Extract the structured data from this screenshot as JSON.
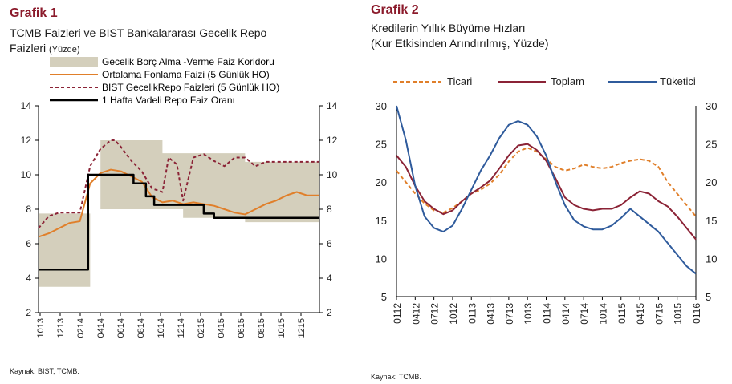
{
  "chart1": {
    "heading": "Grafik 1",
    "subtitle_line1": "TCMB Faizleri ve BIST Bankalararası Gecelik Repo",
    "subtitle_line2": "Faizleri",
    "unit": "(Yüzde)",
    "source": "Kaynak: BIST, TCMB."
  },
  "chart2": {
    "heading": "Grafik 2",
    "subtitle_line1": "Kredilerin Yıllık Büyüme Hızları",
    "subtitle_line2": "(Kur Etkisinden Arındırılmış, Yüzde)",
    "source": "Kaynak: TCMB."
  },
  "colors": {
    "title": "#8b1a2b",
    "corridor": "#d4cfbc",
    "orange": "#e07f2a",
    "maroon": "#8b2336",
    "black": "#000000",
    "blue": "#2f5b9c"
  },
  "chart_data": [
    {
      "type": "line",
      "ylim": [
        2,
        14
      ],
      "yticks": [
        2,
        4,
        6,
        8,
        10,
        12,
        14
      ],
      "xticks": [
        "1013",
        "1213",
        "0214",
        "0414",
        "0614",
        "0814",
        "1014",
        "1214",
        "0215",
        "0415",
        "0615",
        "0815",
        "1015",
        "1215"
      ],
      "grid": false,
      "legend_position": "top",
      "series": [
        {
          "name": "Gecelik Borç Alma -Verme Faiz Koridoru",
          "style": "band",
          "x": [
            0,
            2.5,
            2.5,
            3.0,
            3.0,
            4.5,
            4.5,
            6.0,
            6.0,
            7.0,
            7.0,
            8.0,
            8.0,
            10.0,
            10.0,
            10.5,
            10.5,
            13.6
          ],
          "lower": [
            3.5,
            3.5,
            7.75,
            7.75,
            8,
            8,
            8,
            8,
            8,
            8,
            7.5,
            7.5,
            7.5,
            7.5,
            7.25,
            7.25,
            7.25,
            7.25
          ],
          "upper": [
            7.75,
            7.75,
            7.75,
            7.75,
            12,
            12,
            12,
            12,
            11.25,
            11.25,
            11.25,
            11.25,
            11.25,
            11.25,
            10.75,
            10.75,
            10.75,
            10.75
          ]
        },
        {
          "name": "Ortalama Fonlama Faizi (5 Günlük HO)",
          "x": [
            0,
            0.5,
            1.0,
            1.5,
            2.0,
            2.5,
            3.0,
            3.5,
            4.0,
            4.5,
            5.0,
            5.5,
            6.0,
            6.5,
            7.0,
            7.5,
            8.0,
            8.5,
            9.0,
            9.5,
            10.0,
            10.5,
            11.0,
            11.5,
            12.0,
            12.5,
            13.0,
            13.6
          ],
          "values": [
            6.4,
            6.6,
            6.9,
            7.2,
            7.3,
            9.5,
            10.1,
            10.3,
            10.2,
            9.9,
            9.6,
            8.7,
            8.4,
            8.5,
            8.3,
            8.4,
            8.3,
            8.2,
            8.0,
            7.8,
            7.7,
            8.0,
            8.3,
            8.5,
            8.8,
            9.0,
            8.8,
            8.8
          ]
        },
        {
          "name": "BIST GecelikRepo Faizleri (5 Günlük HO)",
          "x": [
            0,
            0.5,
            1.0,
            1.5,
            2.0,
            2.5,
            3.0,
            3.5,
            3.7,
            4.0,
            4.5,
            5.0,
            5.5,
            6.0,
            6.3,
            6.7,
            7.0,
            7.5,
            8.0,
            8.5,
            9.0,
            9.5,
            10.0,
            10.5,
            11.0,
            12.0,
            13.0,
            13.6
          ],
          "values": [
            6.9,
            7.6,
            7.8,
            7.8,
            7.8,
            10.5,
            11.5,
            12.0,
            12.0,
            11.6,
            10.8,
            10.2,
            9.2,
            9.0,
            11.0,
            10.6,
            8.5,
            11.0,
            11.2,
            10.8,
            10.5,
            11.0,
            11.0,
            10.5,
            10.75,
            10.75,
            10.75,
            10.75
          ]
        },
        {
          "name": "1 Hafta Vadeli Repo Faiz Oranı",
          "style": "step",
          "x": [
            0,
            2.4,
            2.4,
            4.6,
            4.6,
            5.2,
            5.2,
            5.6,
            5.6,
            8.0,
            8.0,
            8.5,
            8.5,
            13.6
          ],
          "values": [
            4.5,
            4.5,
            10.0,
            10.0,
            9.5,
            9.5,
            8.75,
            8.75,
            8.25,
            8.25,
            7.75,
            7.75,
            7.5,
            7.5
          ]
        }
      ]
    },
    {
      "type": "line",
      "ylim": [
        5,
        30
      ],
      "yticks": [
        5,
        10,
        15,
        20,
        25,
        30
      ],
      "xticks": [
        "0112",
        "0412",
        "0712",
        "1012",
        "0113",
        "0413",
        "0713",
        "1013",
        "0114",
        "0414",
        "0714",
        "1014",
        "0115",
        "0415",
        "0715",
        "1015",
        "0116"
      ],
      "grid": false,
      "legend_position": "top",
      "series": [
        {
          "name": "Ticari",
          "x": [
            0,
            0.5,
            1.0,
            1.5,
            2.0,
            2.5,
            3.0,
            3.5,
            4.0,
            4.5,
            5.0,
            5.5,
            6.0,
            6.5,
            7.0,
            7.5,
            8.0,
            8.5,
            9.0,
            9.5,
            10.0,
            10.5,
            11.0,
            11.5,
            12.0,
            12.5,
            13.0,
            13.5,
            14.0,
            14.5,
            15.0,
            15.5,
            16.0
          ],
          "values": [
            21.5,
            20.0,
            18.5,
            17.2,
            16.3,
            16.0,
            16.6,
            17.5,
            18.5,
            19.0,
            19.8,
            21.0,
            22.7,
            24.0,
            24.5,
            24.0,
            23.0,
            22.0,
            21.5,
            21.8,
            22.3,
            22.0,
            21.8,
            22.0,
            22.5,
            22.8,
            23.0,
            22.8,
            22.0,
            20.0,
            18.5,
            17.0,
            15.5
          ]
        },
        {
          "name": "Toplam",
          "x": [
            0,
            0.5,
            1.0,
            1.5,
            2.0,
            2.5,
            3.0,
            3.5,
            4.0,
            4.5,
            5.0,
            5.5,
            6.0,
            6.5,
            7.0,
            7.5,
            8.0,
            8.5,
            9.0,
            9.5,
            10.0,
            10.5,
            11.0,
            11.5,
            12.0,
            12.5,
            13.0,
            13.5,
            14.0,
            14.5,
            15.0,
            15.5,
            16.0
          ],
          "values": [
            23.5,
            22.0,
            19.5,
            17.5,
            16.5,
            15.8,
            16.3,
            17.5,
            18.5,
            19.3,
            20.2,
            21.8,
            23.5,
            24.8,
            25.0,
            24.2,
            22.8,
            20.5,
            18.0,
            17.0,
            16.5,
            16.3,
            16.5,
            16.5,
            17.0,
            18.0,
            18.8,
            18.5,
            17.5,
            16.8,
            15.5,
            14.0,
            12.5
          ]
        },
        {
          "name": "Tüketici",
          "x": [
            0,
            0.5,
            1.0,
            1.5,
            2.0,
            2.5,
            3.0,
            3.5,
            4.0,
            4.5,
            5.0,
            5.5,
            6.0,
            6.5,
            7.0,
            7.5,
            8.0,
            8.5,
            9.0,
            9.5,
            10.0,
            10.5,
            11.0,
            11.5,
            12.0,
            12.5,
            13.0,
            13.5,
            14.0,
            14.5,
            15.0,
            15.5,
            16.0
          ],
          "values": [
            30.0,
            25.5,
            19.5,
            15.5,
            14.0,
            13.5,
            14.3,
            16.5,
            19.0,
            21.5,
            23.5,
            25.8,
            27.5,
            28.0,
            27.5,
            26.0,
            23.5,
            20.0,
            17.0,
            15.0,
            14.2,
            13.8,
            13.8,
            14.3,
            15.3,
            16.5,
            15.5,
            14.5,
            13.5,
            12.0,
            10.5,
            9.0,
            8.0
          ]
        }
      ]
    }
  ]
}
